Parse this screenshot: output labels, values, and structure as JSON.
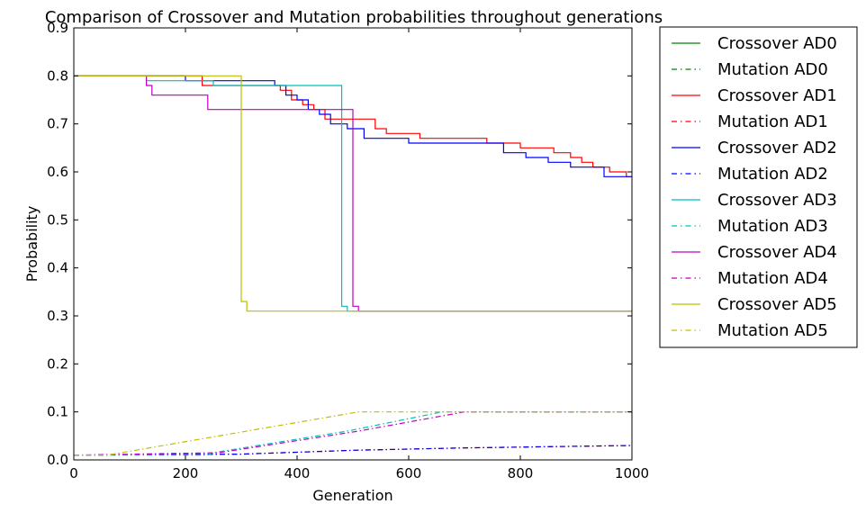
{
  "chart_data": {
    "type": "line",
    "title": "Comparison of Crossover and Mutation probabilities throughout generations",
    "xlabel": "Generation",
    "ylabel": "Probability",
    "xlim": [
      0,
      1000
    ],
    "ylim": [
      0.0,
      0.9
    ],
    "xticks": [
      0,
      200,
      400,
      600,
      800,
      1000
    ],
    "yticks": [
      0.0,
      0.1,
      0.2,
      0.3,
      0.4,
      0.5,
      0.6,
      0.7,
      0.8,
      0.9
    ],
    "xtick_labels": [
      "0",
      "200",
      "400",
      "600",
      "800",
      "1000"
    ],
    "ytick_labels": [
      "0.0",
      "0.1",
      "0.2",
      "0.3",
      "0.4",
      "0.5",
      "0.6",
      "0.7",
      "0.8",
      "0.9"
    ],
    "grid": false,
    "legend_position": "outside-right",
    "series": [
      {
        "name": "Crossover AD0",
        "color": "#008000",
        "style": "solid",
        "x": [
          0,
          50,
          60
        ],
        "y": [
          0.8,
          0.8,
          0.8
        ]
      },
      {
        "name": "Mutation AD0",
        "color": "#008000",
        "style": "dashdot",
        "x": [
          0,
          60
        ],
        "y": [
          0.01,
          0.01
        ]
      },
      {
        "name": "Crossover AD1",
        "color": "#ff0000",
        "style": "solid",
        "x": [
          0,
          210,
          230,
          350,
          370,
          390,
          410,
          430,
          450,
          530,
          540,
          560,
          600,
          620,
          740,
          800,
          860,
          890,
          910,
          930,
          960,
          980,
          990,
          1000
        ],
        "y": [
          0.8,
          0.8,
          0.78,
          0.78,
          0.77,
          0.75,
          0.74,
          0.73,
          0.71,
          0.71,
          0.69,
          0.68,
          0.68,
          0.67,
          0.66,
          0.65,
          0.64,
          0.63,
          0.62,
          0.61,
          0.6,
          0.6,
          0.59,
          0.59
        ]
      },
      {
        "name": "Mutation AD1",
        "color": "#ff0000",
        "style": "dashdot",
        "x": [
          0,
          300,
          500,
          700,
          1000
        ],
        "y": [
          0.01,
          0.012,
          0.02,
          0.025,
          0.03
        ]
      },
      {
        "name": "Crossover AD2",
        "color": "#0000ff",
        "style": "solid",
        "x": [
          0,
          200,
          340,
          360,
          380,
          400,
          420,
          440,
          460,
          490,
          520,
          560,
          600,
          720,
          770,
          810,
          850,
          890,
          930,
          950,
          1000
        ],
        "y": [
          0.8,
          0.79,
          0.79,
          0.78,
          0.76,
          0.75,
          0.73,
          0.72,
          0.7,
          0.69,
          0.67,
          0.67,
          0.66,
          0.66,
          0.64,
          0.63,
          0.62,
          0.61,
          0.61,
          0.59,
          0.59
        ]
      },
      {
        "name": "Mutation AD2",
        "color": "#0000ff",
        "style": "dashdot",
        "x": [
          0,
          300,
          500,
          700,
          1000
        ],
        "y": [
          0.01,
          0.012,
          0.02,
          0.025,
          0.03
        ]
      },
      {
        "name": "Crossover AD3",
        "color": "#00bfbf",
        "style": "solid",
        "x": [
          0,
          110,
          130,
          240,
          250,
          480,
          490,
          1000
        ],
        "y": [
          0.8,
          0.8,
          0.79,
          0.79,
          0.78,
          0.32,
          0.31,
          0.31
        ]
      },
      {
        "name": "Mutation AD3",
        "color": "#00bfbf",
        "style": "dashdot",
        "x": [
          0,
          240,
          250,
          490,
          660,
          1000
        ],
        "y": [
          0.01,
          0.01,
          0.015,
          0.06,
          0.1,
          0.1
        ]
      },
      {
        "name": "Crossover AD4",
        "color": "#bf00bf",
        "style": "solid",
        "x": [
          0,
          120,
          130,
          140,
          230,
          240,
          300,
          500,
          510,
          1000
        ],
        "y": [
          0.8,
          0.8,
          0.78,
          0.76,
          0.76,
          0.73,
          0.73,
          0.32,
          0.31,
          0.31
        ]
      },
      {
        "name": "Mutation AD4",
        "color": "#bf00bf",
        "style": "dashdot",
        "x": [
          0,
          260,
          510,
          700,
          1000
        ],
        "y": [
          0.01,
          0.015,
          0.06,
          0.1,
          0.1
        ]
      },
      {
        "name": "Crossover AD5",
        "color": "#bfbf00",
        "style": "solid",
        "x": [
          0,
          60,
          300,
          310,
          1000
        ],
        "y": [
          0.8,
          0.8,
          0.33,
          0.31,
          0.31
        ]
      },
      {
        "name": "Mutation AD5",
        "color": "#bfbf00",
        "style": "dashdot",
        "x": [
          0,
          60,
          510,
          1000
        ],
        "y": [
          0.01,
          0.01,
          0.1,
          0.1
        ]
      }
    ]
  }
}
